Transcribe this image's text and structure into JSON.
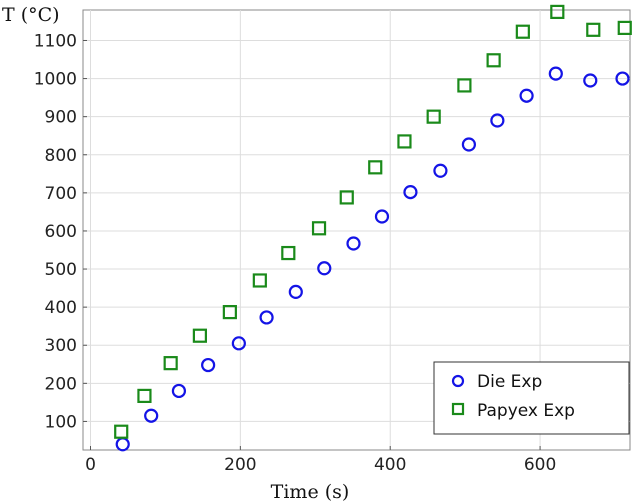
{
  "chart_data": {
    "type": "scatter",
    "title": "",
    "xlabel": "Time (s)",
    "ylabel": "T (°C)",
    "xlim": [
      -10,
      720
    ],
    "ylim": [
      25,
      1180
    ],
    "x_ticks": [
      0,
      200,
      400,
      600
    ],
    "y_ticks": [
      100,
      200,
      300,
      400,
      500,
      600,
      700,
      800,
      900,
      1000,
      1100
    ],
    "grid": true,
    "legend_position": "bottom-right",
    "series": [
      {
        "name": "Die Exp",
        "marker": "circle",
        "color": "#1414e6",
        "points": [
          [
            43,
            40
          ],
          [
            81,
            115
          ],
          [
            118,
            180
          ],
          [
            157,
            248
          ],
          [
            198,
            305
          ],
          [
            235,
            373
          ],
          [
            274,
            440
          ],
          [
            312,
            502
          ],
          [
            351,
            567
          ],
          [
            389,
            638
          ],
          [
            427,
            702
          ],
          [
            467,
            758
          ],
          [
            505,
            827
          ],
          [
            543,
            890
          ],
          [
            582,
            955
          ],
          [
            621,
            1013
          ],
          [
            667,
            995
          ],
          [
            710,
            1000
          ]
        ]
      },
      {
        "name": "Papyex Exp",
        "marker": "square",
        "color": "#1a8a1a",
        "points": [
          [
            41,
            73
          ],
          [
            72,
            167
          ],
          [
            107,
            253
          ],
          [
            146,
            325
          ],
          [
            186,
            387
          ],
          [
            226,
            470
          ],
          [
            264,
            542
          ],
          [
            305,
            607
          ],
          [
            342,
            688
          ],
          [
            380,
            767
          ],
          [
            419,
            835
          ],
          [
            458,
            900
          ],
          [
            499,
            982
          ],
          [
            538,
            1048
          ],
          [
            577,
            1123
          ],
          [
            623,
            1175
          ],
          [
            671,
            1128
          ],
          [
            713,
            1133
          ]
        ]
      }
    ]
  }
}
